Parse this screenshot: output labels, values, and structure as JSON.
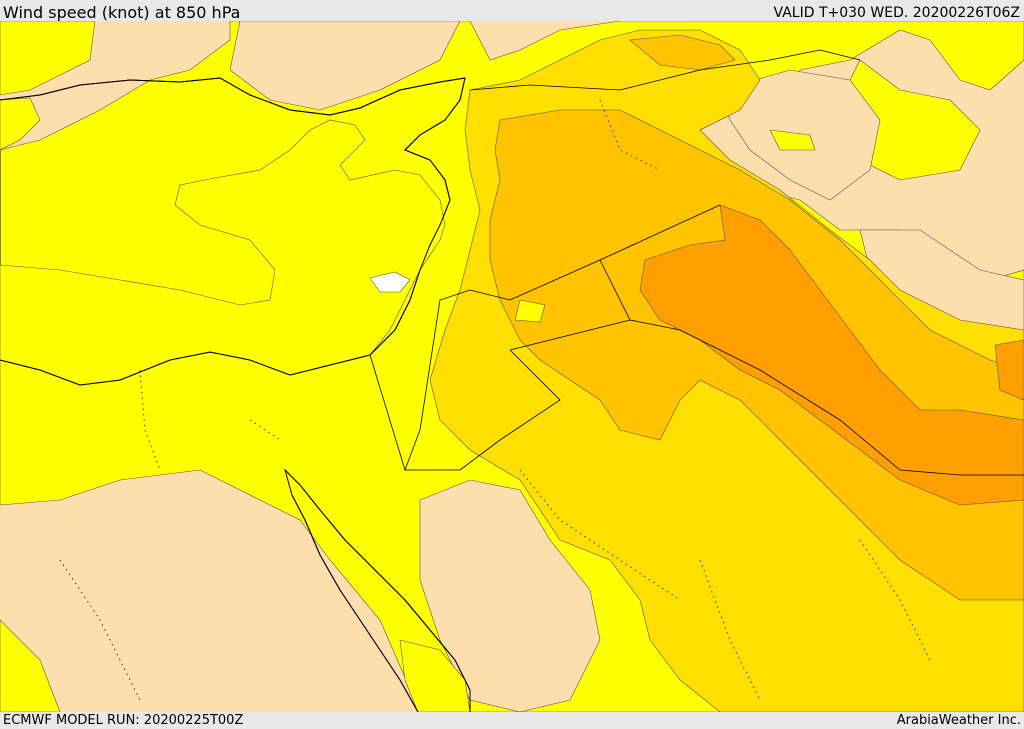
{
  "header": {
    "title": "Wind speed (knot) at 850 hPa",
    "valid": "VALID T+030 WED. 20200226T06Z"
  },
  "footer": {
    "model_run": "ECMWF MODEL RUN: 20200225T00Z",
    "credit": "ArabiaWeather Inc."
  },
  "colors": {
    "sea": "#ffffff",
    "calm": "#ffdead",
    "light": "#ffff00",
    "moderate": "#ffdf00",
    "fresh": "#ffc300",
    "strong": "#ff9f00"
  }
}
